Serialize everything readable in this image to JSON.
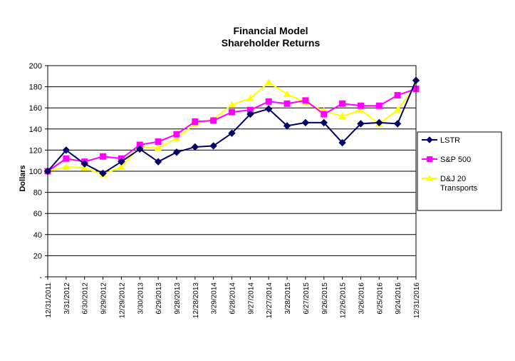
{
  "chart_data": {
    "type": "line",
    "title": [
      "Financial Model",
      "Shareholder Returns"
    ],
    "xlabel": "",
    "ylabel": "Dollars",
    "ylim": [
      0,
      200
    ],
    "yticks": [
      0,
      20,
      40,
      60,
      80,
      100,
      120,
      140,
      160,
      180,
      200
    ],
    "ytick_labels": [
      "-",
      "20",
      "40",
      "60",
      "80",
      "100",
      "120",
      "140",
      "160",
      "180",
      "200"
    ],
    "grid": "horizontal",
    "legend": "right",
    "categories": [
      "12/31/2011",
      "3/31/2012",
      "6/30/2012",
      "9/29/2012",
      "12/29/2012",
      "3/30/2013",
      "6/29/2013",
      "9/28/2013",
      "12/28/2013",
      "3/29/2014",
      "6/28/2014",
      "9/27/2014",
      "12/27/2014",
      "3/28/2015",
      "6/27/2015",
      "9/26/2015",
      "12/26/2015",
      "3/26/2016",
      "6/25/2016",
      "9/24/2016",
      "12/31/2016"
    ],
    "series": [
      {
        "name": "LSTR",
        "color": "#000066",
        "marker": "diamond",
        "values": [
          100,
          120,
          107,
          98,
          109,
          121,
          109,
          118,
          123,
          124,
          136,
          154,
          159,
          143,
          146,
          146,
          127,
          145,
          146,
          145,
          186
        ]
      },
      {
        "name": "S&P 500",
        "color": "#ff00ff",
        "marker": "square",
        "values": [
          100,
          112,
          109,
          114,
          112,
          125,
          128,
          135,
          147,
          148,
          156,
          158,
          166,
          164,
          167,
          154,
          164,
          162,
          162,
          172,
          178
        ]
      },
      {
        "name": "D&J 20 Transports",
        "color": "#ffff00",
        "marker": "triangle",
        "values": [
          100,
          104,
          103,
          97,
          104,
          123,
          122,
          131,
          145,
          149,
          163,
          169,
          184,
          173,
          165,
          157,
          152,
          158,
          145,
          158,
          181
        ]
      }
    ]
  }
}
